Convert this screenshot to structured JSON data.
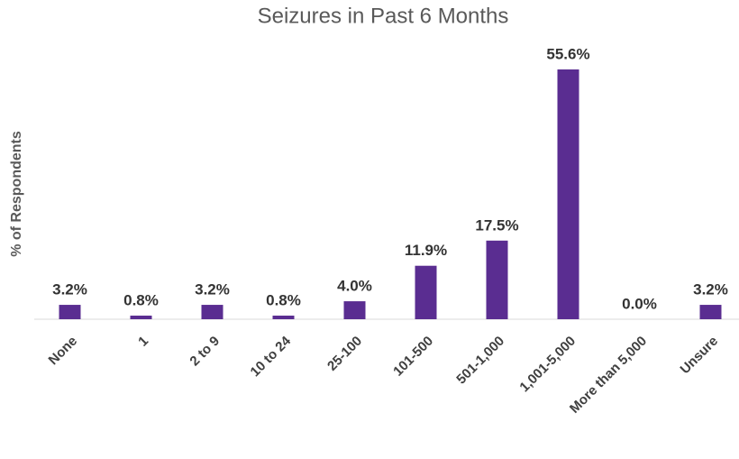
{
  "chart_data": {
    "type": "bar",
    "title": "Seizures in Past 6 Months",
    "y_label": "% of Respondents",
    "categories": [
      "None",
      "1",
      "2 to 9",
      "10 to 24",
      "25-100",
      "101-500",
      "501-1,000",
      "1,001-5,000",
      "More than 5,000",
      "Unsure"
    ],
    "values": [
      3.2,
      0.8,
      3.2,
      0.8,
      4.0,
      11.9,
      17.5,
      55.6,
      0.0,
      3.2
    ],
    "value_labels": [
      "3.2%",
      "0.8%",
      "3.2%",
      "0.8%",
      "4.0%",
      "11.9%",
      "17.5%",
      "55.6%",
      "0.0%",
      "3.2%"
    ],
    "color": "#5a2d91"
  }
}
